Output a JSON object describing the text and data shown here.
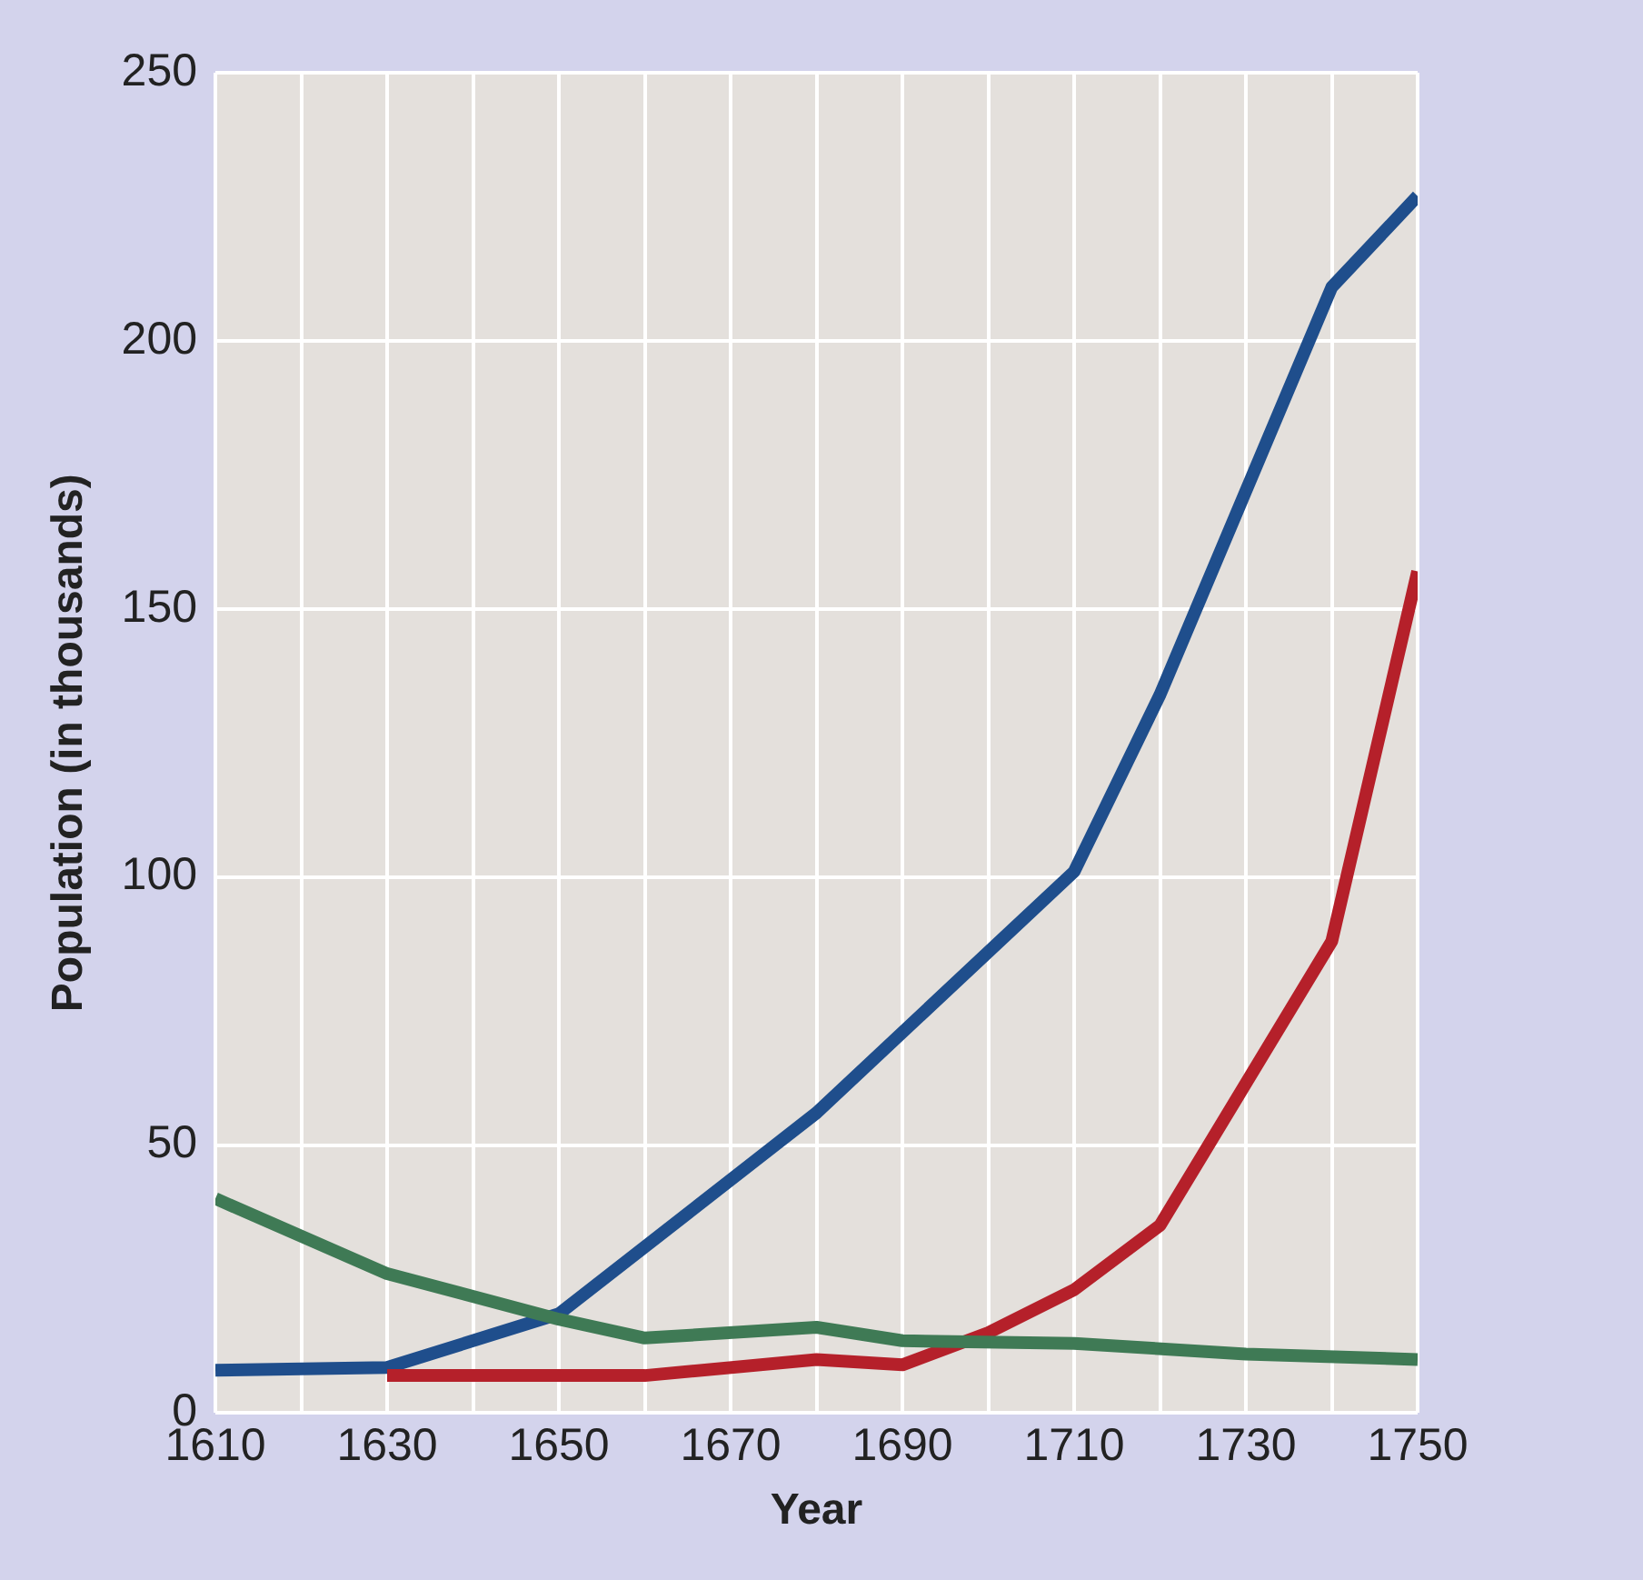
{
  "chart_data": {
    "type": "line",
    "xlabel": "Year",
    "ylabel": "Population (in thousands)",
    "xlim": [
      1610,
      1750
    ],
    "ylim": [
      0,
      250
    ],
    "xticks": [
      1610,
      {
        "value": 1620,
        "label": null
      },
      1630,
      {
        "value": 1640,
        "label": null
      },
      1650,
      {
        "value": 1660,
        "label": null
      },
      1670,
      {
        "value": 1680,
        "label": null
      },
      1690,
      {
        "value": 1700,
        "label": null
      },
      1710,
      {
        "value": 1720,
        "label": null
      },
      1730,
      {
        "value": 1740,
        "label": null
      },
      1750
    ],
    "yticks": [
      0,
      50,
      100,
      150,
      200,
      250
    ],
    "grid": true,
    "legend": false,
    "marker": "none",
    "line_style": "solid",
    "series": [
      {
        "color": "#3f7a55",
        "x": [
          1610,
          1630,
          1650,
          1660,
          1680,
          1690,
          1710,
          1730,
          1750
        ],
        "values": [
          40,
          26,
          17.5,
          14,
          16,
          13.5,
          13,
          11,
          10
        ]
      },
      {
        "color": "#b5202a",
        "x": [
          1630,
          1650,
          1660,
          1680,
          1690,
          1700,
          1710,
          1720,
          1740,
          1750
        ],
        "values": [
          7,
          7,
          7,
          10,
          9,
          15,
          23,
          35,
          88,
          157
        ]
      },
      {
        "color": "#1f4e8c",
        "x": [
          1610,
          1630,
          1650,
          1680,
          1710,
          1720,
          1740,
          1750
        ],
        "values": [
          8,
          8.5,
          18.5,
          56,
          101,
          134,
          210,
          227
        ]
      }
    ]
  }
}
